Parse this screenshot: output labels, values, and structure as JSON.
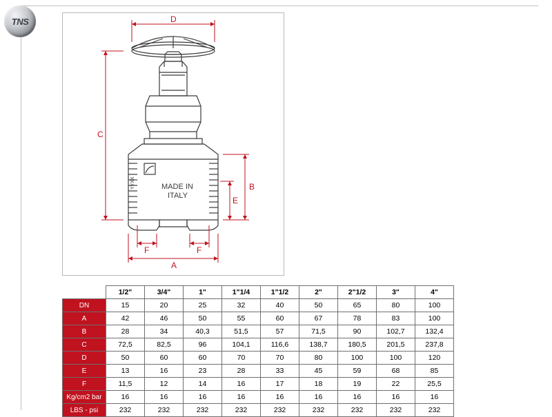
{
  "logo_text": "TNS",
  "drawing": {
    "dims": [
      "A",
      "B",
      "C",
      "D",
      "E",
      "F",
      "F"
    ],
    "body_label_1": "MADE IN",
    "body_label_2": "ITALY",
    "body_label_3": "YYXX",
    "stroke": "#3a3a3a",
    "dim_stroke": "#c1121f",
    "dim_font": "#c1121f"
  },
  "table": {
    "sizes": [
      "1/2\"",
      "3/4\"",
      "1\"",
      "1\"1/4",
      "1\"1/2",
      "2\"",
      "2\"1/2",
      "3\"",
      "4\""
    ],
    "rows": [
      {
        "label": "DN",
        "vals": [
          "15",
          "20",
          "25",
          "32",
          "40",
          "50",
          "65",
          "80",
          "100"
        ]
      },
      {
        "label": "A",
        "vals": [
          "42",
          "46",
          "50",
          "55",
          "60",
          "67",
          "78",
          "83",
          "100"
        ]
      },
      {
        "label": "B",
        "vals": [
          "28",
          "34",
          "40,3",
          "51,5",
          "57",
          "71,5",
          "90",
          "102,7",
          "132,4"
        ]
      },
      {
        "label": "C",
        "vals": [
          "72,5",
          "82,5",
          "96",
          "104,1",
          "116,6",
          "138,7",
          "180,5",
          "201,5",
          "237,8"
        ]
      },
      {
        "label": "D",
        "vals": [
          "50",
          "60",
          "60",
          "70",
          "70",
          "80",
          "100",
          "100",
          "120"
        ]
      },
      {
        "label": "E",
        "vals": [
          "13",
          "16",
          "23",
          "28",
          "33",
          "45",
          "59",
          "68",
          "85"
        ]
      },
      {
        "label": "F",
        "vals": [
          "11,5",
          "12",
          "14",
          "16",
          "17",
          "18",
          "19",
          "22",
          "25,5"
        ]
      },
      {
        "label": "Kg/cm2 bar",
        "vals": [
          "16",
          "16",
          "16",
          "16",
          "16",
          "16",
          "16",
          "16",
          "16"
        ]
      },
      {
        "label": "LBS - psi",
        "vals": [
          "232",
          "232",
          "232",
          "232",
          "232",
          "232",
          "232",
          "232",
          "232"
        ]
      }
    ],
    "header_bg": "#c1121f",
    "header_fg": "#ffffff",
    "border": "#6e6e6e"
  }
}
